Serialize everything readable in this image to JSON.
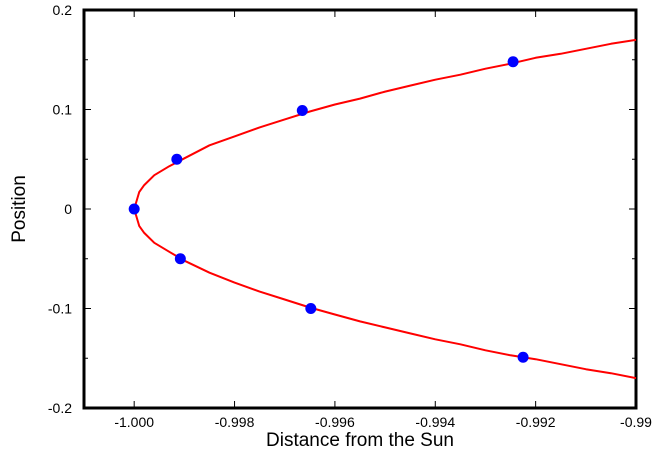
{
  "chart_data": {
    "type": "line",
    "xlabel": "Distance from the Sun",
    "ylabel": "Position",
    "xlim": [
      -1.001,
      -0.99
    ],
    "ylim": [
      -0.2,
      0.2
    ],
    "xticks": [
      {
        "value": -1.0,
        "label": "-1.000"
      },
      {
        "value": -0.998,
        "label": "-0.998"
      },
      {
        "value": -0.996,
        "label": "-0.996"
      },
      {
        "value": -0.994,
        "label": "-0.994"
      },
      {
        "value": -0.992,
        "label": "-0.992"
      },
      {
        "value": -0.99,
        "label": "-0.99"
      }
    ],
    "yticks": [
      {
        "value": 0.2,
        "label": "0.2"
      },
      {
        "value": 0.1,
        "label": "0.1"
      },
      {
        "value": 0.0,
        "label": "0"
      },
      {
        "value": -0.1,
        "label": "-0.1"
      },
      {
        "value": -0.2,
        "label": "-0.2"
      }
    ],
    "grid": false,
    "series": [
      {
        "kind": "curve",
        "color": "#ff0000",
        "x": [
          -0.99,
          -0.9905,
          -0.991,
          -0.9915,
          -0.992,
          -0.9925,
          -0.993,
          -0.9935,
          -0.994,
          -0.9945,
          -0.995,
          -0.9955,
          -0.996,
          -0.9965,
          -0.997,
          -0.9975,
          -0.998,
          -0.9985,
          -0.999,
          -0.9993,
          -0.9996,
          -0.9998,
          -0.9999,
          -1.0,
          -0.9999,
          -0.9998,
          -0.9996,
          -0.9993,
          -0.999,
          -0.9985,
          -0.998,
          -0.9975,
          -0.997,
          -0.9965,
          -0.996,
          -0.9955,
          -0.995,
          -0.9945,
          -0.994,
          -0.9935,
          -0.993,
          -0.9925,
          -0.992,
          -0.9915,
          -0.991,
          -0.9905,
          -0.99
        ],
        "y": [
          0.17,
          0.166,
          0.161,
          0.156,
          0.152,
          0.146,
          0.141,
          0.135,
          0.13,
          0.124,
          0.118,
          0.111,
          0.105,
          0.098,
          0.09,
          0.082,
          0.073,
          0.064,
          0.051,
          0.043,
          0.034,
          0.024,
          0.017,
          0.0,
          -0.017,
          -0.024,
          -0.034,
          -0.043,
          -0.052,
          -0.064,
          -0.074,
          -0.083,
          -0.091,
          -0.099,
          -0.106,
          -0.113,
          -0.119,
          -0.125,
          -0.131,
          -0.136,
          -0.142,
          -0.147,
          -0.151,
          -0.156,
          -0.161,
          -0.165,
          -0.17
        ]
      },
      {
        "kind": "points",
        "color": "#0000ff",
        "x": [
          -1.0,
          -0.99915,
          -0.99665,
          -0.99245,
          -0.99908,
          -0.99648,
          -0.99225
        ],
        "y": [
          0.0,
          0.05,
          0.099,
          0.148,
          -0.05,
          -0.1,
          -0.149
        ]
      }
    ]
  }
}
